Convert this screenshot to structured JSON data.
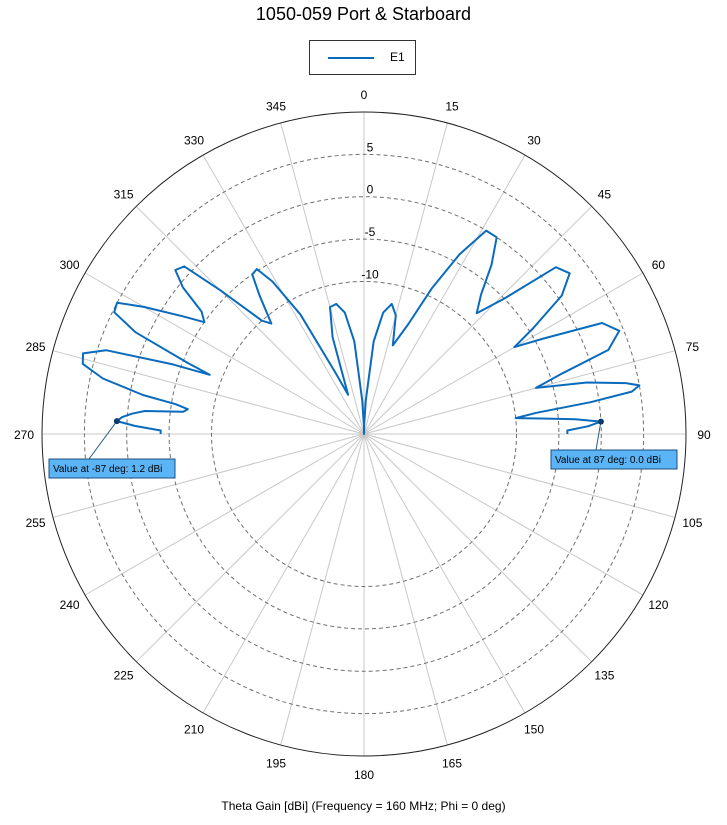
{
  "chart_data": {
    "type": "polar",
    "title": "1050-059 Port & Starboard",
    "xlabel": "Theta Gain [dBi] (Frequency = 160 MHz; Phi = 0 deg)",
    "angle_ticks": [
      "0",
      "15",
      "30",
      "45",
      "60",
      "75",
      "90",
      "105",
      "120",
      "135",
      "150",
      "165",
      "180",
      "195",
      "210",
      "225",
      "240",
      "255",
      "270",
      "285",
      "300",
      "315",
      "330",
      "345"
    ],
    "radial_ticks": [
      5,
      0,
      -5,
      -10
    ],
    "r_range": [
      -28,
      10
    ],
    "series": [
      {
        "name": "E1",
        "color": "#0a6bbd",
        "points": [
          [
            -90,
            -4.0
          ],
          [
            -89,
            -4.0
          ],
          [
            -88,
            -1.0
          ],
          [
            -87,
            1.2
          ],
          [
            -86,
            0.6
          ],
          [
            -85,
            -0.5
          ],
          [
            -84,
            -2.0
          ],
          [
            -83,
            -6.5
          ],
          [
            -82,
            -7.0
          ],
          [
            -81,
            -5.5
          ],
          [
            -80,
            -1.5
          ],
          [
            -78,
            3.5
          ],
          [
            -76,
            6.2
          ],
          [
            -74,
            6.5
          ],
          [
            -72,
            4.0
          ],
          [
            -70,
            -4.0
          ],
          [
            -69,
            -8.5
          ],
          [
            -68,
            -5.5
          ],
          [
            -66,
            1.5
          ],
          [
            -64,
            4.8
          ],
          [
            -62,
            5.0
          ],
          [
            -60,
            2.0
          ],
          [
            -57,
            -2.5
          ],
          [
            -55,
            -5.0
          ],
          [
            -53,
            -4.0
          ],
          [
            -51,
            -0.5
          ],
          [
            -49,
            1.5
          ],
          [
            -47,
            1.0
          ],
          [
            -45,
            -4.0
          ],
          [
            -42,
            -10.0
          ],
          [
            -40,
            -11.0
          ],
          [
            -37,
            -7.5
          ],
          [
            -35,
            -5.0
          ],
          [
            -33,
            -4.8
          ],
          [
            -31,
            -7.0
          ],
          [
            -28,
            -12.0
          ],
          [
            -25,
            -20.0
          ],
          [
            -22,
            -23.0
          ],
          [
            -18,
            -16.0
          ],
          [
            -15,
            -12.5
          ],
          [
            -12,
            -12.3
          ],
          [
            -9,
            -13.5
          ],
          [
            -6,
            -17.0
          ],
          [
            -3,
            -24.0
          ],
          [
            -1,
            -27.0
          ],
          [
            0,
            -28.0
          ],
          [
            1,
            -27.0
          ],
          [
            3,
            -24.0
          ],
          [
            6,
            -17.0
          ],
          [
            9,
            -13.5
          ],
          [
            12,
            -12.3
          ],
          [
            15,
            -13.5
          ],
          [
            18,
            -17.0
          ],
          [
            22,
            -14.0
          ],
          [
            25,
            -9.0
          ],
          [
            28,
            -4.0
          ],
          [
            31,
            0.0
          ],
          [
            34,
            0.0
          ],
          [
            37,
            -3.0
          ],
          [
            40,
            -6.5
          ],
          [
            43,
            -8.5
          ],
          [
            46,
            -5.0
          ],
          [
            49,
            2.0
          ],
          [
            52,
            2.8
          ],
          [
            55,
            0.5
          ],
          [
            58,
            -4.5
          ],
          [
            60,
            -7.5
          ],
          [
            62,
            -4.0
          ],
          [
            65,
            3.0
          ],
          [
            68,
            4.5
          ],
          [
            71,
            2.5
          ],
          [
            73,
            -3.5
          ],
          [
            75,
            -7.0
          ],
          [
            77,
            -1.0
          ],
          [
            79,
            3.5
          ],
          [
            80,
            5.0
          ],
          [
            81,
            4.0
          ],
          [
            82,
            -1.0
          ],
          [
            83,
            -7.5
          ],
          [
            84,
            -10.0
          ],
          [
            85,
            -7.0
          ],
          [
            86,
            -3.0
          ],
          [
            87,
            0.0
          ],
          [
            88,
            -1.5
          ],
          [
            89,
            -4.0
          ],
          [
            90,
            -4.0
          ]
        ]
      }
    ],
    "markers": [
      {
        "angle": -87,
        "value": 1.2,
        "label": "Value at -87 deg: 1.2 dBi"
      },
      {
        "angle": 87,
        "value": 0.0,
        "label": "Value at 87 deg: 0.0 dBi"
      }
    ],
    "grid": true,
    "legend_position": "top-center"
  }
}
